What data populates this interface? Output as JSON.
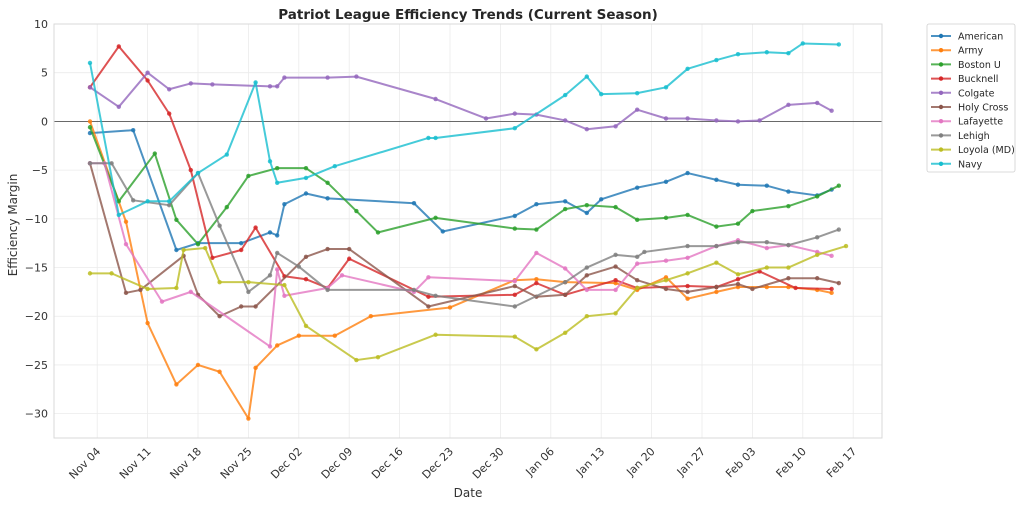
{
  "chart_data": {
    "type": "line",
    "title": "Patriot League Efficiency Trends (Current Season)",
    "xlabel": "Date",
    "ylabel": "Efficiency Margin",
    "ylim": [
      -32.5,
      10
    ],
    "xlim": [
      "Oct 29",
      "Feb 21"
    ],
    "yticks": [
      10,
      5,
      0,
      -5,
      -10,
      -15,
      -20,
      -25,
      -30
    ],
    "xticks": [
      "Nov 04",
      "Nov 11",
      "Nov 18",
      "Nov 25",
      "Dec 02",
      "Dec 09",
      "Dec 16",
      "Dec 23",
      "Dec 30",
      "Jan 06",
      "Jan 13",
      "Jan 20",
      "Jan 27",
      "Feb 03",
      "Feb 10",
      "Feb 17"
    ],
    "grid": true,
    "reference_line_y": 0,
    "legend_position": "outside-top-right",
    "series": [
      {
        "name": "American",
        "color": "#1f77b4",
        "points": [
          [
            "Nov 03",
            -1.2
          ],
          [
            "Nov 09",
            -0.9
          ],
          [
            "Nov 15",
            -13.2
          ],
          [
            "Nov 18",
            -12.5
          ],
          [
            "Nov 24",
            -12.5
          ],
          [
            "Nov 28",
            -11.4
          ],
          [
            "Nov 29",
            -11.7
          ],
          [
            "Nov 30",
            -8.5
          ],
          [
            "Dec 03",
            -7.4
          ],
          [
            "Dec 06",
            -7.9
          ],
          [
            "Dec 18",
            -8.4
          ],
          [
            "Dec 22",
            -11.3
          ],
          [
            "Jan 01",
            -9.7
          ],
          [
            "Jan 04",
            -8.5
          ],
          [
            "Jan 08",
            -8.2
          ],
          [
            "Jan 11",
            -9.4
          ],
          [
            "Jan 13",
            -8.0
          ],
          [
            "Jan 18",
            -6.8
          ],
          [
            "Jan 22",
            -6.2
          ],
          [
            "Jan 25",
            -5.3
          ],
          [
            "Jan 29",
            -6.0
          ],
          [
            "Feb 01",
            -6.5
          ],
          [
            "Feb 05",
            -6.6
          ],
          [
            "Feb 08",
            -7.2
          ],
          [
            "Feb 12",
            -7.6
          ],
          [
            "Feb 14",
            -7.0
          ]
        ]
      },
      {
        "name": "Army",
        "color": "#ff7f0e",
        "points": [
          [
            "Nov 03",
            0.0
          ],
          [
            "Nov 08",
            -10.3
          ],
          [
            "Nov 11",
            -20.7
          ],
          [
            "Nov 15",
            -27.0
          ],
          [
            "Nov 18",
            -25.0
          ],
          [
            "Nov 21",
            -25.7
          ],
          [
            "Nov 25",
            -30.5
          ],
          [
            "Nov 26",
            -25.3
          ],
          [
            "Nov 29",
            -23.0
          ],
          [
            "Dec 02",
            -22.0
          ],
          [
            "Dec 07",
            -22.0
          ],
          [
            "Dec 12",
            -20.0
          ],
          [
            "Dec 23",
            -19.1
          ],
          [
            "Jan 01",
            -16.3
          ],
          [
            "Jan 04",
            -16.2
          ],
          [
            "Jan 08",
            -16.5
          ],
          [
            "Jan 15",
            -16.6
          ],
          [
            "Jan 18",
            -17.3
          ],
          [
            "Jan 22",
            -16.0
          ],
          [
            "Jan 25",
            -18.2
          ],
          [
            "Jan 29",
            -17.5
          ],
          [
            "Feb 01",
            -17.0
          ],
          [
            "Feb 05",
            -17.0
          ],
          [
            "Feb 08",
            -17.0
          ],
          [
            "Feb 12",
            -17.3
          ],
          [
            "Feb 14",
            -17.6
          ]
        ]
      },
      {
        "name": "Boston U",
        "color": "#2ca02c",
        "points": [
          [
            "Nov 03",
            -0.6
          ],
          [
            "Nov 07",
            -8.2
          ],
          [
            "Nov 12",
            -3.3
          ],
          [
            "Nov 15",
            -10.1
          ],
          [
            "Nov 18",
            -12.6
          ],
          [
            "Nov 22",
            -8.8
          ],
          [
            "Nov 25",
            -5.6
          ],
          [
            "Nov 29",
            -4.8
          ],
          [
            "Dec 03",
            -4.8
          ],
          [
            "Dec 06",
            -6.3
          ],
          [
            "Dec 10",
            -9.2
          ],
          [
            "Dec 13",
            -11.4
          ],
          [
            "Dec 21",
            -9.9
          ],
          [
            "Jan 01",
            -11.0
          ],
          [
            "Jan 04",
            -11.1
          ],
          [
            "Jan 08",
            -9.0
          ],
          [
            "Jan 11",
            -8.6
          ],
          [
            "Jan 15",
            -8.8
          ],
          [
            "Jan 18",
            -10.1
          ],
          [
            "Jan 22",
            -9.9
          ],
          [
            "Jan 25",
            -9.6
          ],
          [
            "Jan 29",
            -10.8
          ],
          [
            "Feb 01",
            -10.5
          ],
          [
            "Feb 03",
            -9.2
          ],
          [
            "Feb 08",
            -8.7
          ],
          [
            "Feb 12",
            -7.7
          ],
          [
            "Feb 15",
            -6.6
          ]
        ]
      },
      {
        "name": "Bucknell",
        "color": "#d62728",
        "points": [
          [
            "Nov 03",
            3.5
          ],
          [
            "Nov 07",
            7.7
          ],
          [
            "Nov 11",
            4.2
          ],
          [
            "Nov 14",
            0.8
          ],
          [
            "Nov 17",
            -5.0
          ],
          [
            "Nov 20",
            -14.0
          ],
          [
            "Nov 24",
            -13.2
          ],
          [
            "Nov 26",
            -10.9
          ],
          [
            "Nov 30",
            -15.9
          ],
          [
            "Dec 03",
            -16.2
          ],
          [
            "Dec 06",
            -17.1
          ],
          [
            "Dec 09",
            -14.1
          ],
          [
            "Dec 20",
            -18.0
          ],
          [
            "Jan 01",
            -17.8
          ],
          [
            "Jan 04",
            -16.6
          ],
          [
            "Jan 08",
            -17.8
          ],
          [
            "Jan 15",
            -16.3
          ],
          [
            "Jan 18",
            -17.1
          ],
          [
            "Jan 25",
            -16.9
          ],
          [
            "Jan 29",
            -17.0
          ],
          [
            "Feb 01",
            -16.2
          ],
          [
            "Feb 04",
            -15.4
          ],
          [
            "Feb 09",
            -17.1
          ],
          [
            "Feb 14",
            -17.2
          ]
        ]
      },
      {
        "name": "Colgate",
        "color": "#9467bd",
        "points": [
          [
            "Nov 03",
            3.5
          ],
          [
            "Nov 07",
            1.5
          ],
          [
            "Nov 11",
            5.0
          ],
          [
            "Nov 14",
            3.3
          ],
          [
            "Nov 17",
            3.9
          ],
          [
            "Nov 20",
            3.8
          ],
          [
            "Nov 28",
            3.6
          ],
          [
            "Nov 29",
            3.6
          ],
          [
            "Nov 30",
            4.5
          ],
          [
            "Dec 06",
            4.5
          ],
          [
            "Dec 10",
            4.6
          ],
          [
            "Dec 21",
            2.3
          ],
          [
            "Dec 28",
            0.3
          ],
          [
            "Jan 01",
            0.8
          ],
          [
            "Jan 04",
            0.7
          ],
          [
            "Jan 08",
            0.1
          ],
          [
            "Jan 11",
            -0.8
          ],
          [
            "Jan 15",
            -0.5
          ],
          [
            "Jan 18",
            1.2
          ],
          [
            "Jan 22",
            0.3
          ],
          [
            "Jan 25",
            0.3
          ],
          [
            "Jan 29",
            0.1
          ],
          [
            "Feb 01",
            0.0
          ],
          [
            "Feb 04",
            0.1
          ],
          [
            "Feb 08",
            1.7
          ],
          [
            "Feb 12",
            1.9
          ],
          [
            "Feb 14",
            1.1
          ]
        ]
      },
      {
        "name": "Holy Cross",
        "color": "#8c564b",
        "points": [
          [
            "Nov 03",
            -4.3
          ],
          [
            "Nov 08",
            -17.6
          ],
          [
            "Nov 10",
            -17.3
          ],
          [
            "Nov 16",
            -13.8
          ],
          [
            "Nov 18",
            -17.8
          ],
          [
            "Nov 21",
            -20.0
          ],
          [
            "Nov 24",
            -19.0
          ],
          [
            "Nov 26",
            -19.0
          ],
          [
            "Dec 03",
            -13.9
          ],
          [
            "Dec 06",
            -13.1
          ],
          [
            "Dec 09",
            -13.1
          ],
          [
            "Dec 20",
            -19.0
          ],
          [
            "Jan 01",
            -16.9
          ],
          [
            "Jan 04",
            -18.0
          ],
          [
            "Jan 08",
            -17.8
          ],
          [
            "Jan 11",
            -15.8
          ],
          [
            "Jan 15",
            -14.9
          ],
          [
            "Jan 18",
            -16.3
          ],
          [
            "Jan 22",
            -17.2
          ],
          [
            "Jan 25",
            -17.5
          ],
          [
            "Jan 29",
            -17.0
          ],
          [
            "Feb 01",
            -16.7
          ],
          [
            "Feb 03",
            -17.2
          ],
          [
            "Feb 08",
            -16.1
          ],
          [
            "Feb 12",
            -16.1
          ],
          [
            "Feb 15",
            -16.6
          ]
        ]
      },
      {
        "name": "Lafayette",
        "color": "#e377c2",
        "points": [
          [
            "Nov 03",
            -4.3
          ],
          [
            "Nov 05",
            -4.3
          ],
          [
            "Nov 08",
            -12.6
          ],
          [
            "Nov 13",
            -18.5
          ],
          [
            "Nov 17",
            -17.5
          ],
          [
            "Nov 28",
            -23.1
          ],
          [
            "Nov 29",
            -15.2
          ],
          [
            "Nov 30",
            -17.9
          ],
          [
            "Dec 06",
            -17.1
          ],
          [
            "Dec 08",
            -15.8
          ],
          [
            "Dec 18",
            -17.5
          ],
          [
            "Dec 20",
            -16.0
          ],
          [
            "Jan 01",
            -16.4
          ],
          [
            "Jan 04",
            -13.5
          ],
          [
            "Jan 08",
            -15.1
          ],
          [
            "Jan 11",
            -17.3
          ],
          [
            "Jan 15",
            -17.3
          ],
          [
            "Jan 18",
            -14.6
          ],
          [
            "Jan 22",
            -14.3
          ],
          [
            "Jan 25",
            -14.0
          ],
          [
            "Jan 29",
            -12.8
          ],
          [
            "Feb 01",
            -12.2
          ],
          [
            "Feb 05",
            -13.0
          ],
          [
            "Feb 08",
            -12.7
          ],
          [
            "Feb 12",
            -13.4
          ],
          [
            "Feb 14",
            -13.8
          ]
        ]
      },
      {
        "name": "Lehigh",
        "color": "#7f7f7f",
        "points": [
          [
            "Nov 03",
            -4.3
          ],
          [
            "Nov 06",
            -4.3
          ],
          [
            "Nov 09",
            -8.1
          ],
          [
            "Nov 14",
            -8.6
          ],
          [
            "Nov 18",
            -5.3
          ],
          [
            "Nov 21",
            -10.7
          ],
          [
            "Nov 25",
            -17.5
          ],
          [
            "Nov 28",
            -15.8
          ],
          [
            "Nov 29",
            -13.5
          ],
          [
            "Dec 02",
            -14.9
          ],
          [
            "Dec 06",
            -17.3
          ],
          [
            "Dec 18",
            -17.3
          ],
          [
            "Dec 21",
            -17.9
          ],
          [
            "Jan 01",
            -19.0
          ],
          [
            "Jan 08",
            -16.5
          ],
          [
            "Jan 11",
            -15.0
          ],
          [
            "Jan 15",
            -13.7
          ],
          [
            "Jan 18",
            -13.9
          ],
          [
            "Jan 19",
            -13.4
          ],
          [
            "Jan 25",
            -12.8
          ],
          [
            "Jan 29",
            -12.8
          ],
          [
            "Feb 01",
            -12.4
          ],
          [
            "Feb 05",
            -12.4
          ],
          [
            "Feb 08",
            -12.7
          ],
          [
            "Feb 12",
            -11.9
          ],
          [
            "Feb 15",
            -11.1
          ]
        ]
      },
      {
        "name": "Loyola (MD)",
        "color": "#bcbd22",
        "points": [
          [
            "Nov 03",
            -15.6
          ],
          [
            "Nov 06",
            -15.6
          ],
          [
            "Nov 11",
            -17.2
          ],
          [
            "Nov 15",
            -17.1
          ],
          [
            "Nov 16",
            -13.2
          ],
          [
            "Nov 19",
            -13.0
          ],
          [
            "Nov 21",
            -16.5
          ],
          [
            "Nov 25",
            -16.5
          ],
          [
            "Nov 30",
            -16.8
          ],
          [
            "Dec 03",
            -21.0
          ],
          [
            "Dec 10",
            -24.5
          ],
          [
            "Dec 13",
            -24.2
          ],
          [
            "Dec 21",
            -21.9
          ],
          [
            "Jan 01",
            -22.1
          ],
          [
            "Jan 04",
            -23.4
          ],
          [
            "Jan 08",
            -21.7
          ],
          [
            "Jan 11",
            -20.0
          ],
          [
            "Jan 15",
            -19.7
          ],
          [
            "Jan 18",
            -17.1
          ],
          [
            "Jan 22",
            -16.3
          ],
          [
            "Jan 25",
            -15.6
          ],
          [
            "Jan 29",
            -14.5
          ],
          [
            "Feb 01",
            -15.7
          ],
          [
            "Feb 05",
            -15.0
          ],
          [
            "Feb 08",
            -15.0
          ],
          [
            "Feb 12",
            -13.7
          ],
          [
            "Feb 16",
            -12.8
          ]
        ]
      },
      {
        "name": "Navy",
        "color": "#17becf",
        "points": [
          [
            "Nov 03",
            6.0
          ],
          [
            "Nov 07",
            -9.6
          ],
          [
            "Nov 11",
            -8.2
          ],
          [
            "Nov 14",
            -8.2
          ],
          [
            "Nov 18",
            -5.3
          ],
          [
            "Nov 22",
            -3.4
          ],
          [
            "Nov 26",
            4.0
          ],
          [
            "Nov 28",
            -4.1
          ],
          [
            "Nov 29",
            -6.3
          ],
          [
            "Dec 03",
            -5.8
          ],
          [
            "Dec 07",
            -4.6
          ],
          [
            "Dec 20",
            -1.7
          ],
          [
            "Dec 21",
            -1.7
          ],
          [
            "Jan 01",
            -0.7
          ],
          [
            "Jan 08",
            2.7
          ],
          [
            "Jan 11",
            4.6
          ],
          [
            "Jan 13",
            2.8
          ],
          [
            "Jan 18",
            2.9
          ],
          [
            "Jan 22",
            3.5
          ],
          [
            "Jan 25",
            5.4
          ],
          [
            "Jan 29",
            6.3
          ],
          [
            "Feb 01",
            6.9
          ],
          [
            "Feb 05",
            7.1
          ],
          [
            "Feb 08",
            7.0
          ],
          [
            "Feb 10",
            8.0
          ],
          [
            "Feb 15",
            7.9
          ]
        ]
      }
    ]
  }
}
